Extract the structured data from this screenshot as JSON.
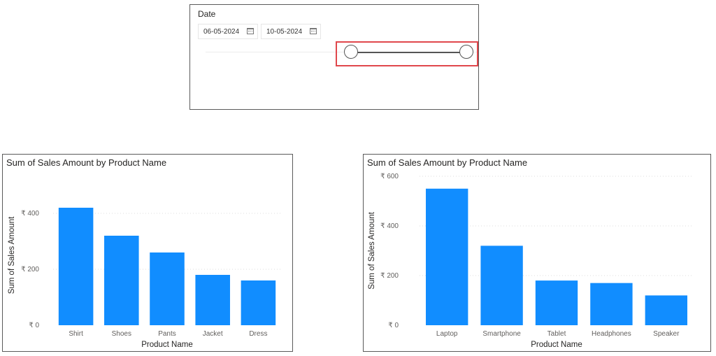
{
  "slicer": {
    "title": "Date",
    "start_date": "06-05-2024",
    "end_date": "10-05-2024",
    "range_start_fraction": 0.0,
    "range_end_fraction": 1.0
  },
  "colors": {
    "bar": "#118DFF",
    "highlight": "#E0474C"
  },
  "icons": {
    "calendar": "calendar-icon"
  },
  "chart_data": [
    {
      "type": "bar",
      "title": "Sum of Sales Amount by Product Name",
      "xlabel": "Product Name",
      "ylabel": "Sum of Sales Amount",
      "categories": [
        "Shirt",
        "Shoes",
        "Pants",
        "Jacket",
        "Dress"
      ],
      "values": [
        420,
        320,
        260,
        180,
        160
      ],
      "ylim": [
        0,
        500
      ],
      "yticks": [
        "₹ 0",
        "₹ 200",
        "₹ 400"
      ],
      "ytick_values": [
        0,
        200,
        400
      ],
      "grid": true
    },
    {
      "type": "bar",
      "title": "Sum of Sales Amount by Product Name",
      "xlabel": "Product Name",
      "ylabel": "Sum of Sales Amount",
      "categories": [
        "Laptop",
        "Smartphone",
        "Tablet",
        "Headphones",
        "Speaker"
      ],
      "values": [
        550,
        320,
        180,
        170,
        120
      ],
      "ylim": [
        0,
        600
      ],
      "yticks": [
        "₹ 0",
        "₹ 200",
        "₹ 400",
        "₹ 600"
      ],
      "ytick_values": [
        0,
        200,
        400,
        600
      ],
      "grid": true
    }
  ]
}
